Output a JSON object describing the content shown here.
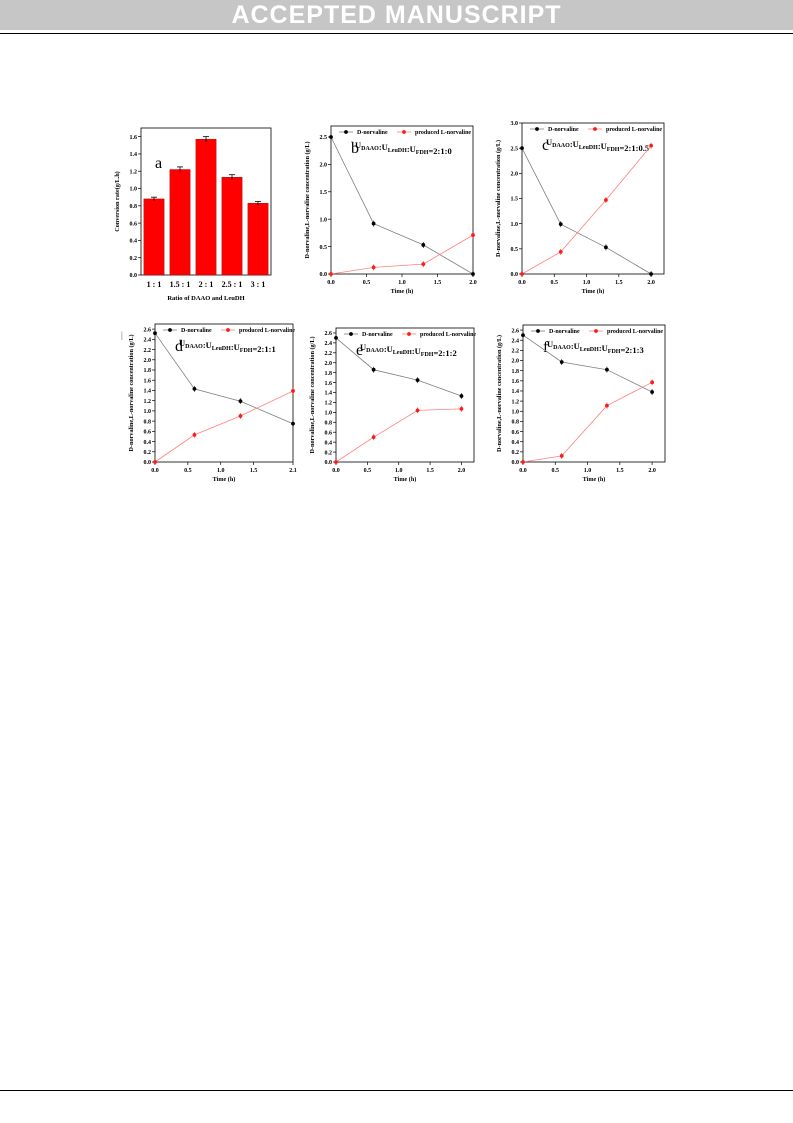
{
  "header": {
    "banner": "ACCEPTED MANUSCRIPT"
  },
  "stray_mark": "|",
  "colors": {
    "banner_bg": "#c6c6c6",
    "bar": "#ff0000",
    "dnorvaline": "#7f7f7f",
    "lnorvaline": "#ff8080",
    "marker_red": "#ff1a1a"
  },
  "chart_data": [
    {
      "id": "a",
      "type": "bar",
      "panel_label": "a",
      "categories": [
        "1 : 1",
        "1.5 : 1",
        "2 : 1",
        "2.5 : 1",
        "3 : 1"
      ],
      "values": [
        0.88,
        1.22,
        1.57,
        1.13,
        0.83
      ],
      "errors": [
        0.02,
        0.03,
        0.03,
        0.03,
        0.02
      ],
      "xlabel": "Ratio of DAAO and LeuDH",
      "ylabel": "Conversion rate(g/L.h)",
      "ylim": [
        0,
        1.7
      ],
      "yticks": [
        "0.0",
        "0.2",
        "0.4",
        "0.6",
        "0.8",
        "1.0",
        "1.2",
        "1.4",
        "1.6"
      ]
    },
    {
      "id": "b",
      "type": "line",
      "panel_label": "b",
      "ratio_label": "U_DAAO:U_LeuDH:U_FDH=2:1:0",
      "xlabel": "Time (h)",
      "ylabel": "D-norvaline,L-norvaline concentration (g/L)",
      "xlim": [
        0,
        2.0
      ],
      "ylim": [
        0,
        2.7
      ],
      "xticks": [
        "0.0",
        "0.5",
        "1.0",
        "1.5",
        "2.0"
      ],
      "yticks": [
        "0.0",
        "0.5",
        "1.0",
        "1.5",
        "2.0",
        "2.5"
      ],
      "legend": [
        "D-norvaline",
        "produced L-norvaline"
      ],
      "series": [
        {
          "name": "D-norvaline",
          "x": [
            0,
            0.6,
            1.3,
            2.0
          ],
          "y": [
            2.5,
            0.92,
            0.53,
            0.0
          ]
        },
        {
          "name": "produced L-norvaline",
          "x": [
            0,
            0.6,
            1.3,
            2.0
          ],
          "y": [
            0.0,
            0.12,
            0.18,
            0.71
          ]
        }
      ]
    },
    {
      "id": "c",
      "type": "line",
      "panel_label": "c",
      "ratio_label": "U_DAAO:U_LeuDH:U_FDH=2:1:0.5",
      "xlabel": "Time (h)",
      "ylabel": "D-norvaline,L-norvaline concentration (g/L)",
      "xlim": [
        0,
        2.2
      ],
      "ylim": [
        0,
        3.0
      ],
      "xticks": [
        "0.0",
        "0.5",
        "1.0",
        "1.5",
        "2.0"
      ],
      "yticks": [
        "0.0",
        "0.5",
        "1.0",
        "1.5",
        "2.0",
        "2.5",
        "3.0"
      ],
      "legend": [
        "D-norvaline",
        "produced L-norvaline"
      ],
      "series": [
        {
          "name": "D-norvaline",
          "x": [
            0,
            0.6,
            1.3,
            2.0
          ],
          "y": [
            2.5,
            0.99,
            0.53,
            0.0
          ]
        },
        {
          "name": "produced L-norvaline",
          "x": [
            0,
            0.6,
            1.3,
            2.0
          ],
          "y": [
            0.0,
            0.44,
            1.47,
            2.55
          ]
        }
      ]
    },
    {
      "id": "d",
      "type": "line",
      "panel_label": "d",
      "ratio_label": "U_DAAO:U_LeuDH:U_FDH=2:1:1",
      "xlabel": "Time (h)",
      "ylabel": "D-norvaline,L-norvaline concentration (g/L)",
      "xlim": [
        0,
        2.1
      ],
      "ylim": [
        0,
        2.7
      ],
      "xticks": [
        "0.0",
        "0.5",
        "1.0",
        "1.5",
        "2.1"
      ],
      "xtick_vals": [
        0,
        0.5,
        1.0,
        1.5,
        2.1
      ],
      "yticks": [
        "0.0",
        "0.2",
        "0.4",
        "0.6",
        "0.8",
        "1.0",
        "1.2",
        "1.4",
        "1.6",
        "1.8",
        "2.0",
        "2.2",
        "2.4",
        "2.6"
      ],
      "legend": [
        "D-norvaline",
        "produced L-norvaline"
      ],
      "series": [
        {
          "name": "D-norvaline",
          "x": [
            0,
            0.6,
            1.3,
            2.1
          ],
          "y": [
            2.52,
            1.43,
            1.19,
            0.75
          ]
        },
        {
          "name": "produced L-norvaline",
          "x": [
            0,
            0.6,
            1.3,
            2.1
          ],
          "y": [
            0.0,
            0.53,
            0.9,
            1.39
          ]
        }
      ]
    },
    {
      "id": "e",
      "type": "line",
      "panel_label": "e",
      "ratio_label": "U_DAAO:U_LeuDH:U_FDH=2:1:2",
      "xlabel": "Time (h)",
      "ylabel": "D-norvaline,L-norvaline concentration (g/L)",
      "xlim": [
        0,
        2.2
      ],
      "ylim": [
        0,
        2.7
      ],
      "xticks": [
        "0.0",
        "0.5",
        "1.0",
        "1.5",
        "2.0"
      ],
      "yticks": [
        "0.0",
        "0.2",
        "0.4",
        "0.6",
        "0.8",
        "1.0",
        "1.2",
        "1.4",
        "1.6",
        "1.8",
        "2.0",
        "2.2",
        "2.4",
        "2.6"
      ],
      "legend": [
        "D-norvaline",
        "produced L-norvaline"
      ],
      "series": [
        {
          "name": "D-norvaline",
          "x": [
            0,
            0.6,
            1.3,
            2.0
          ],
          "y": [
            2.5,
            1.86,
            1.65,
            1.33
          ]
        },
        {
          "name": "produced L-norvaline",
          "x": [
            0,
            0.6,
            1.3,
            2.0
          ],
          "y": [
            0.0,
            0.5,
            1.04,
            1.07
          ]
        }
      ]
    },
    {
      "id": "f",
      "type": "line",
      "panel_label": "f",
      "ratio_label": "U_DAAO:U_LeuDH:U_FDH=2:1:3",
      "xlabel": "Time (h)",
      "ylabel": "D-norvaline,L-norvaline concentration (g/L)",
      "xlim": [
        0,
        2.2
      ],
      "ylim": [
        0,
        2.7
      ],
      "xticks": [
        "0.0",
        "0.5",
        "1.0",
        "1.5",
        "2.0"
      ],
      "yticks": [
        "0.0",
        "0.2",
        "0.4",
        "0.6",
        "0.8",
        "1.0",
        "1.2",
        "1.4",
        "1.6",
        "1.8",
        "2.0",
        "2.2",
        "2.4",
        "2.6"
      ],
      "legend": [
        "D-norvaline",
        "produced L-norvaline"
      ],
      "series": [
        {
          "name": "D-norvaline",
          "x": [
            0,
            0.6,
            1.3,
            2.0
          ],
          "y": [
            2.5,
            1.97,
            1.82,
            1.38
          ]
        },
        {
          "name": "produced L-norvaline",
          "x": [
            0,
            0.6,
            1.3,
            2.0
          ],
          "y": [
            0.0,
            0.12,
            1.11,
            1.57
          ]
        }
      ]
    }
  ]
}
